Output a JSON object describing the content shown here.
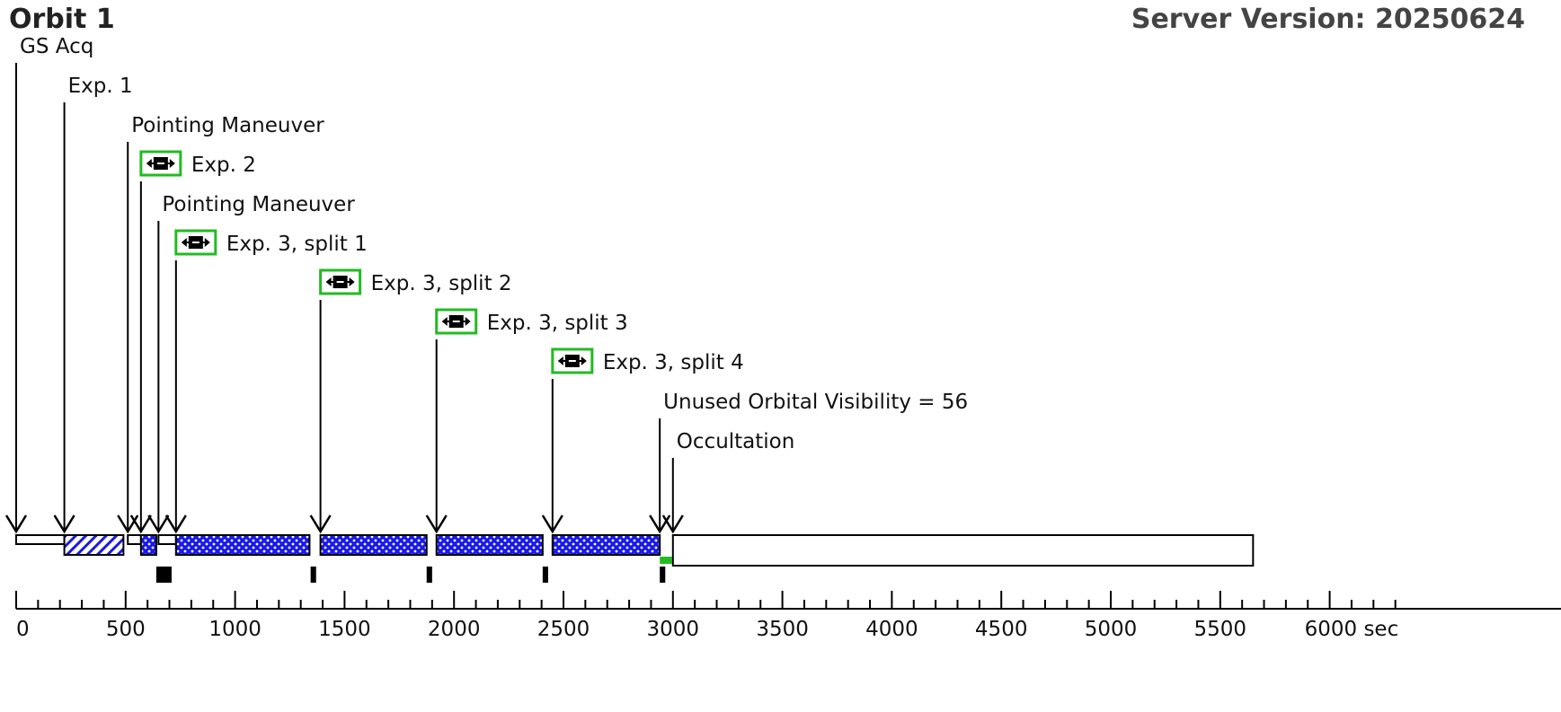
{
  "header": {
    "title": "Orbit 1",
    "version": "Server Version: 20250624"
  },
  "timeline": {
    "axis": {
      "min": 0,
      "max": 6300,
      "major_step": 500,
      "minor_step": 100,
      "unit_suffix": "sec"
    },
    "events": [
      {
        "label": "GS Acq",
        "t": 0,
        "has_icon": false
      },
      {
        "label": "Exp. 1",
        "t": 220,
        "has_icon": false
      },
      {
        "label": "Pointing Maneuver",
        "t": 510,
        "has_icon": false
      },
      {
        "label": "Exp. 2",
        "t": 570,
        "has_icon": true
      },
      {
        "label": "Pointing Maneuver",
        "t": 650,
        "has_icon": false
      },
      {
        "label": "Exp. 3, split 1",
        "t": 730,
        "has_icon": true
      },
      {
        "label": "Exp. 3, split 2",
        "t": 1390,
        "has_icon": true
      },
      {
        "label": "Exp. 3, split 3",
        "t": 1920,
        "has_icon": true
      },
      {
        "label": "Exp. 3, split 4",
        "t": 2450,
        "has_icon": true
      },
      {
        "label": "Unused Orbital Visibility = 56",
        "t": 2940,
        "has_icon": false
      },
      {
        "label": "Occultation",
        "t": 3000,
        "has_icon": false
      }
    ],
    "segments": [
      {
        "kind": "acq",
        "start": 0,
        "end": 220
      },
      {
        "kind": "hatched",
        "start": 220,
        "end": 490
      },
      {
        "kind": "maneuver",
        "start": 510,
        "end": 570
      },
      {
        "kind": "dotted",
        "start": 570,
        "end": 640
      },
      {
        "kind": "maneuver",
        "start": 650,
        "end": 730
      },
      {
        "kind": "dotted",
        "start": 730,
        "end": 1340
      },
      {
        "kind": "dotted",
        "start": 1390,
        "end": 1875
      },
      {
        "kind": "dotted",
        "start": 1920,
        "end": 2405
      },
      {
        "kind": "dotted",
        "start": 2450,
        "end": 2940
      },
      {
        "kind": "unused",
        "start": 2940,
        "end": 2996
      },
      {
        "kind": "occultation",
        "start": 3000,
        "end": 5650
      }
    ],
    "markers": [
      {
        "start": 640,
        "end": 710
      },
      {
        "start": 1345,
        "end": 1370
      },
      {
        "start": 1875,
        "end": 1900
      },
      {
        "start": 2405,
        "end": 2430
      },
      {
        "start": 2940,
        "end": 2965
      }
    ],
    "colors": {
      "blue": "#1a1ae6",
      "green": "#22bb22",
      "black": "#000000"
    }
  }
}
